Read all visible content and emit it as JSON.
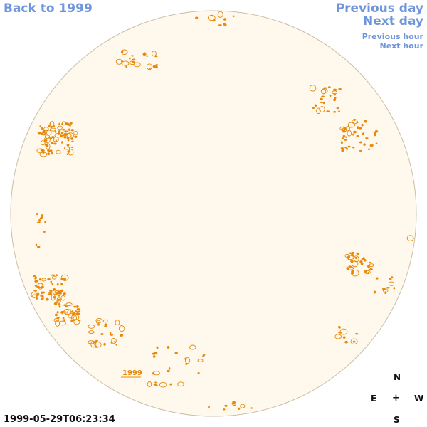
{
  "nav": {
    "back_label": "Back to 1999",
    "previous_day_label": "Previous day",
    "next_day_label": "Next day",
    "previous_hour_label": "Previous hour",
    "next_hour_label": "Next hour"
  },
  "sun": {
    "year_label": "1999",
    "disk_color": "#fef9ec",
    "limb_color": "#c9bfa8",
    "feature_color": "#e8890c"
  },
  "compass": {
    "north": "N",
    "east": "E",
    "center": "+",
    "west": "W",
    "south": "S"
  },
  "timestamp": "1999-05-29T06:23:34"
}
